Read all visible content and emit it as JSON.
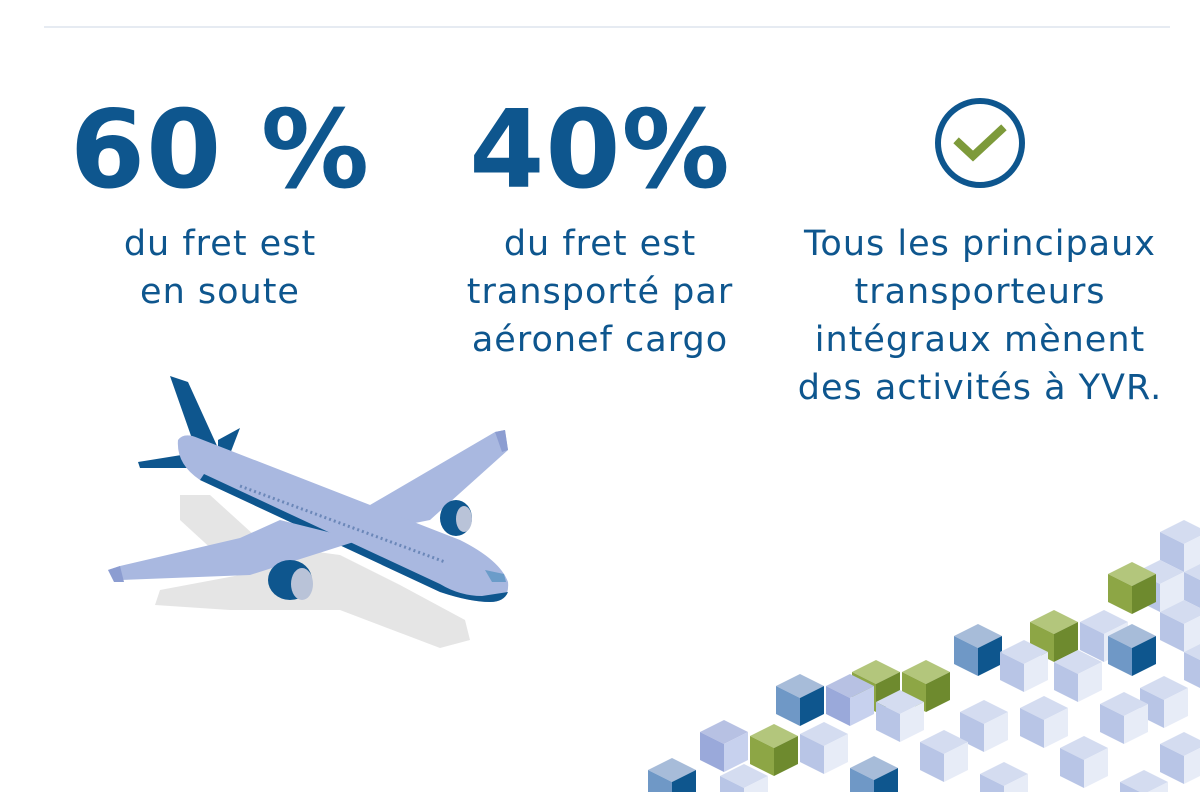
{
  "stats": [
    {
      "value": "60 %",
      "lines": [
        "du fret est",
        "en soute"
      ]
    },
    {
      "value": "40%",
      "lines": [
        "du fret est",
        "transporté par",
        "aéronef cargo"
      ]
    },
    {
      "lines": [
        "Tous les principaux",
        "transporteurs",
        "intégraux mènent",
        "des activités à YVR."
      ]
    }
  ],
  "icons": {
    "check": "check-circle-icon",
    "plane": "airplane-illustration",
    "boxes": "cargo-boxes-illustration"
  },
  "colors": {
    "brand_blue": "#0e568e",
    "plane_light": "#a9b8e0",
    "accent_green": "#7d9a3a"
  }
}
